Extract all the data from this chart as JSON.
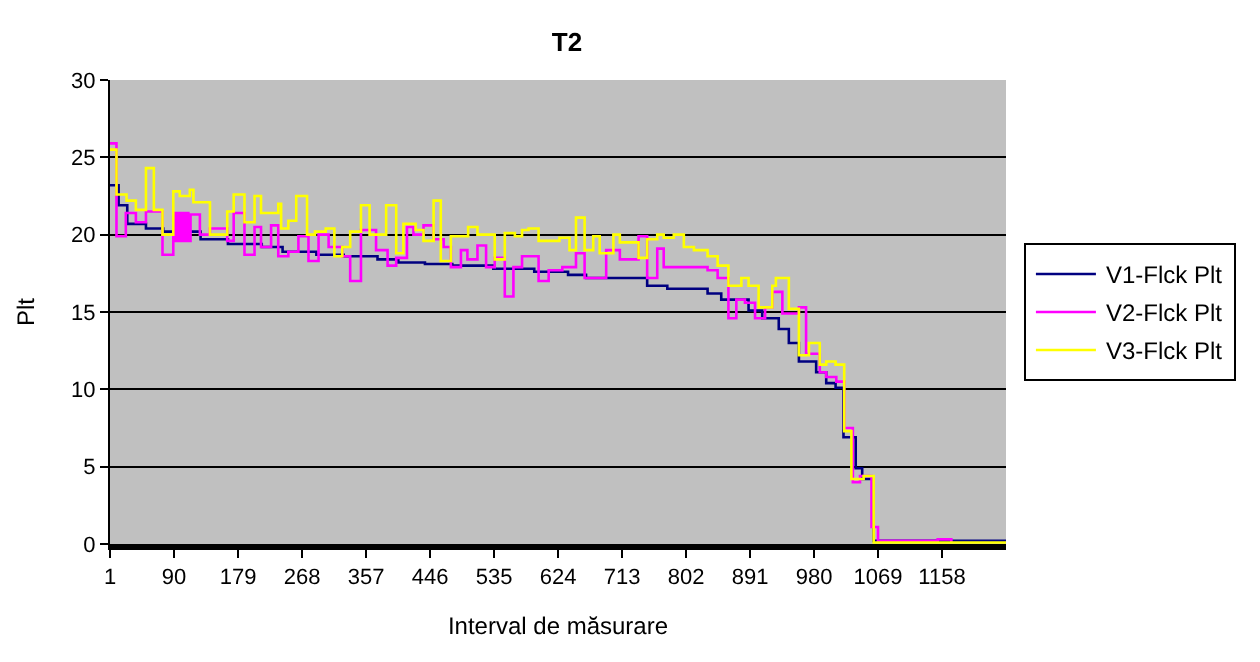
{
  "chart_data": {
    "type": "step",
    "title": "T2",
    "xlabel": "Interval de măsurare",
    "ylabel": "Plt",
    "xlim": [
      1,
      1247
    ],
    "xticks": [
      1,
      90,
      179,
      268,
      357,
      446,
      535,
      624,
      713,
      802,
      891,
      980,
      1069,
      1158
    ],
    "ylim": [
      0,
      30
    ],
    "yticks": [
      0,
      5,
      10,
      15,
      20,
      25,
      30
    ],
    "grid": "y",
    "legend": "right",
    "marker": "none",
    "line_style": "solid",
    "series": [
      {
        "name": "V1-Flck Plt",
        "color": "#000080",
        "x": [
          1,
          13,
          25,
          51,
          75,
          127,
          165,
          212,
          241,
          288,
          326,
          373,
          402,
          439,
          477,
          534,
          591,
          638,
          663,
          748,
          776,
          832,
          851,
          889,
          908,
          931,
          945,
          959,
          983,
          997,
          1010,
          1021,
          1038,
          1047,
          1063,
          1247
        ],
        "values": [
          23.2,
          21.9,
          20.7,
          20.4,
          20.2,
          19.7,
          19.4,
          19.2,
          18.9,
          18.7,
          18.6,
          18.4,
          18.2,
          18.1,
          18.0,
          17.8,
          17.6,
          17.4,
          17.2,
          16.7,
          16.5,
          16.2,
          15.8,
          15.1,
          14.6,
          13.9,
          13.0,
          11.8,
          11.1,
          10.4,
          10.1,
          6.9,
          4.9,
          4.2,
          0.2,
          0.1
        ]
      },
      {
        "name": "V2-Flck Plt",
        "color": "#ff00ff",
        "x": [
          1,
          10,
          23,
          37,
          51,
          74,
          89,
          92,
          95,
          98,
          101,
          104,
          107,
          110,
          113,
          126,
          140,
          164,
          173,
          188,
          202,
          211,
          225,
          235,
          249,
          263,
          277,
          291,
          305,
          324,
          335,
          350,
          371,
          387,
          399,
          414,
          423,
          437,
          451,
          465,
          475,
          489,
          498,
          512,
          524,
          536,
          550,
          562,
          574,
          597,
          611,
          630,
          649,
          661,
          691,
          710,
          736,
          748,
          762,
          771,
          832,
          846,
          861,
          872,
          884,
          898,
          912,
          922,
          936,
          959,
          969,
          988,
          997,
          1011,
          1022,
          1034,
          1044,
          1060,
          1069,
          1152,
          1171
        ],
        "values": [
          25.9,
          19.9,
          21.4,
          20.8,
          21.5,
          18.7,
          21.4,
          19.6,
          21.4,
          19.6,
          21.4,
          19.6,
          21.4,
          19.6,
          21.3,
          20.0,
          20.4,
          19.6,
          21.4,
          18.7,
          20.5,
          19.2,
          20.6,
          18.6,
          18.9,
          19.9,
          18.3,
          20.0,
          19.2,
          18.6,
          17.0,
          20.3,
          19.0,
          18.0,
          18.5,
          20.5,
          20.0,
          20.6,
          19.7,
          19.2,
          17.9,
          19.0,
          18.4,
          19.3,
          17.9,
          18.5,
          16.0,
          17.9,
          18.6,
          17.0,
          17.7,
          17.9,
          18.8,
          17.2,
          19.0,
          18.4,
          19.9,
          17.2,
          19.1,
          17.9,
          17.7,
          17.2,
          14.6,
          15.8,
          15.6,
          14.6,
          15.3,
          16.3,
          14.9,
          15.3,
          12.3,
          11.1,
          10.8,
          10.5,
          7.5,
          4.0,
          4.4,
          1.1,
          0.2,
          0.3,
          0.1
        ]
      },
      {
        "name": "V3-Flck Plt",
        "color": "#ffff00",
        "x": [
          1,
          10,
          24,
          37,
          51,
          62,
          74,
          89,
          98,
          112,
          117,
          140,
          164,
          173,
          188,
          202,
          211,
          235,
          239,
          249,
          260,
          275,
          286,
          301,
          313,
          324,
          335,
          350,
          362,
          385,
          399,
          409,
          426,
          437,
          451,
          461,
          475,
          499,
          512,
          536,
          550,
          564,
          574,
          583,
          597,
          626,
          640,
          649,
          661,
          673,
          682,
          701,
          710,
          736,
          748,
          762,
          771,
          785,
          799,
          813,
          832,
          846,
          861,
          879,
          889,
          903,
          922,
          927,
          945,
          959,
          973,
          988,
          997,
          1010,
          1022,
          1032,
          1049,
          1063,
          1247
        ],
        "values": [
          25.5,
          22.6,
          22.2,
          21.6,
          24.3,
          21.6,
          20.0,
          22.8,
          22.5,
          22.9,
          22.1,
          20.0,
          21.5,
          22.6,
          20.8,
          22.5,
          21.4,
          22.0,
          20.4,
          20.9,
          22.5,
          20.0,
          20.2,
          20.4,
          18.6,
          19.2,
          20.2,
          21.9,
          20.0,
          21.9,
          18.8,
          20.7,
          20.3,
          19.6,
          22.2,
          18.3,
          19.9,
          20.5,
          20.0,
          18.4,
          20.1,
          19.9,
          20.3,
          20.4,
          19.6,
          19.8,
          19.0,
          21.1,
          19.0,
          19.9,
          18.8,
          20.0,
          19.5,
          18.5,
          19.7,
          20.0,
          19.8,
          20.0,
          19.2,
          19.0,
          18.6,
          18.0,
          16.7,
          17.2,
          16.7,
          15.3,
          16.7,
          17.2,
          15.2,
          12.2,
          13.0,
          11.6,
          11.8,
          11.6,
          7.3,
          4.2,
          4.4,
          0.1,
          0.1
        ]
      }
    ]
  }
}
